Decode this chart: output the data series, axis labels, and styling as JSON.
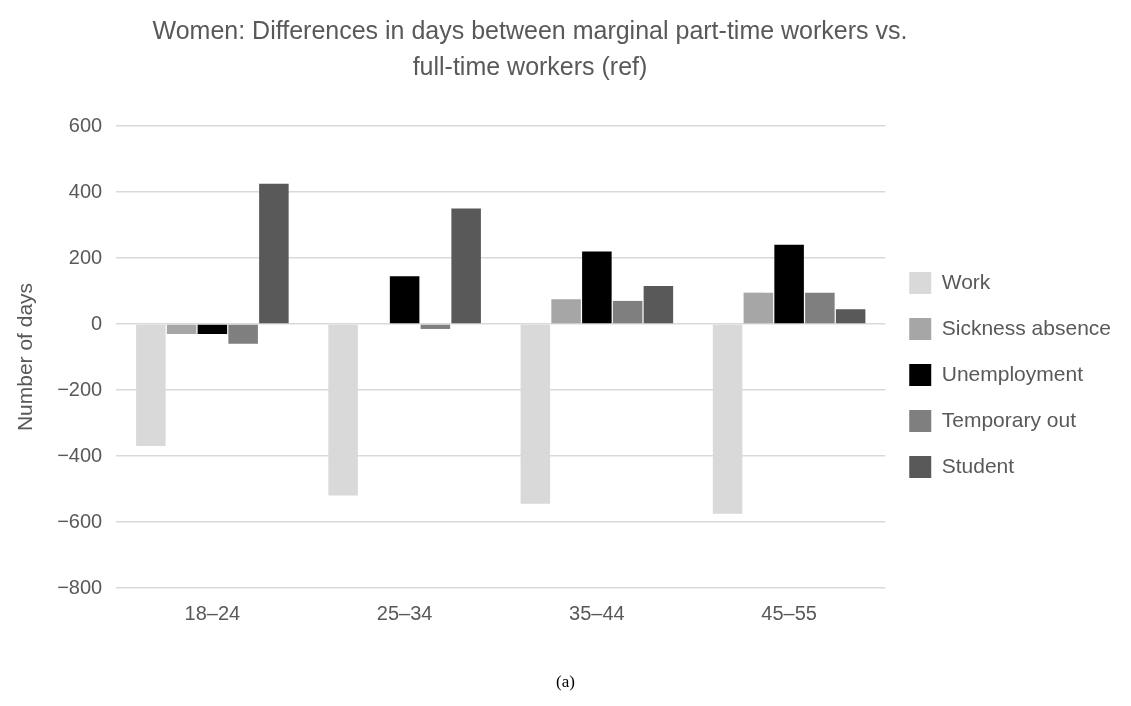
{
  "chart_data": {
    "type": "bar",
    "title": "Women: Differences in days between marginal part-time workers vs. full-time workers (ref)",
    "ylabel": "Number of days",
    "categories": [
      "18–24",
      "25–34",
      "35–44",
      "45–55"
    ],
    "series": [
      {
        "name": "Work",
        "color": "#d9d9d9",
        "values": [
          -370,
          -520,
          -545,
          -575
        ]
      },
      {
        "name": "Sickness absence",
        "color": "#a6a6a6",
        "values": [
          -30,
          0,
          75,
          95
        ]
      },
      {
        "name": "Unemployment",
        "color": "#000000",
        "values": [
          -30,
          145,
          220,
          240
        ]
      },
      {
        "name": "Temporary out",
        "color": "#7f7f7f",
        "values": [
          -60,
          -15,
          70,
          95
        ]
      },
      {
        "name": "Student",
        "color": "#595959",
        "values": [
          425,
          350,
          115,
          45
        ]
      }
    ],
    "ylim": [
      -800,
      600
    ],
    "yticks": [
      {
        "value": 600,
        "label": "600"
      },
      {
        "value": 400,
        "label": "400"
      },
      {
        "value": 200,
        "label": "200"
      },
      {
        "value": 0,
        "label": "0"
      },
      {
        "value": -200,
        "label": "−200"
      },
      {
        "value": -400,
        "label": "−400"
      },
      {
        "value": -600,
        "label": "−600"
      },
      {
        "value": -800,
        "label": "−800"
      }
    ],
    "grid": "y",
    "legend": "right",
    "annotations": [
      "(a)"
    ]
  }
}
